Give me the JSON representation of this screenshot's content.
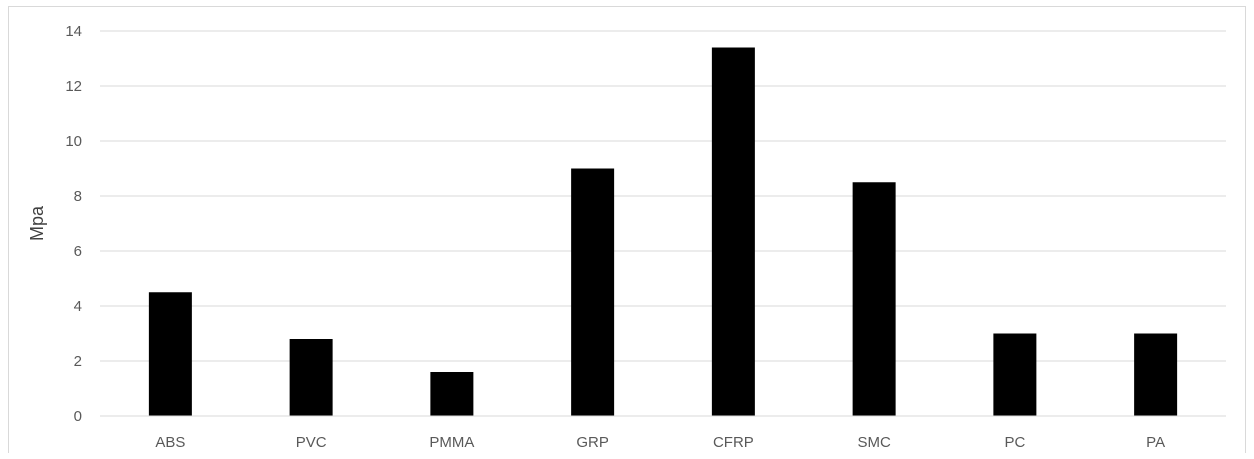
{
  "chart_data": {
    "type": "bar",
    "title": "",
    "xlabel": "",
    "ylabel": "Mpa",
    "categories": [
      "ABS",
      "PVC",
      "PMMA",
      "GRP",
      "CFRP",
      "SMC",
      "PC",
      "PA"
    ],
    "values": [
      4.5,
      2.8,
      1.6,
      9.0,
      13.4,
      8.5,
      3.0,
      3.0
    ],
    "ylim": [
      0,
      14
    ],
    "yticks": [
      "0",
      "2",
      "4",
      "6",
      "8",
      "10",
      "12",
      "14"
    ],
    "grid": true,
    "legend": "none",
    "colors": {
      "bar": "#000000",
      "grid": "#d9d9d9",
      "axis": "#d9d9d9",
      "tick_text": "#595959"
    }
  }
}
